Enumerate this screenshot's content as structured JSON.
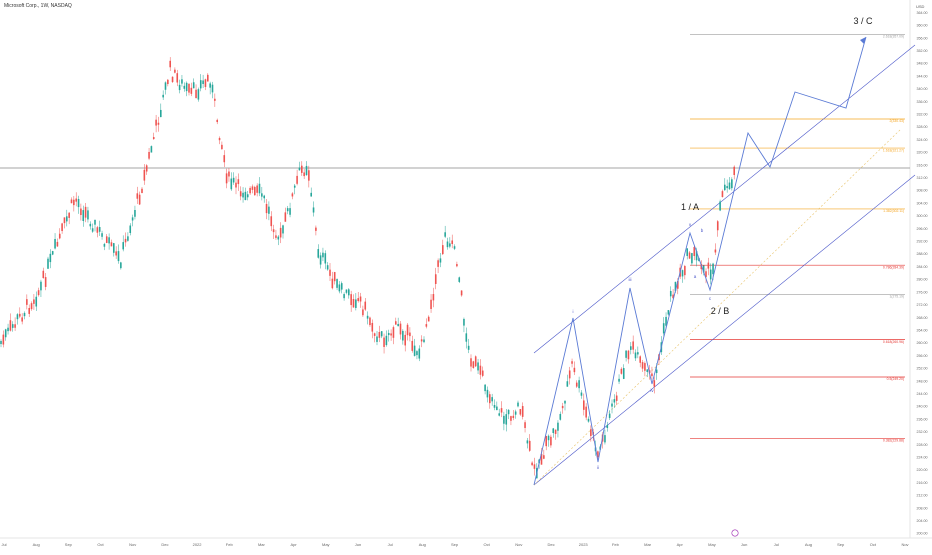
{
  "header": {
    "symbol_title": "Microsoft Corp., 1W, NASDAQ",
    "currency": "USD"
  },
  "chart_data": {
    "type": "candlestick",
    "title": "",
    "y_axis": {
      "ticks": [
        200,
        204,
        208,
        212,
        216,
        220,
        224,
        228,
        232,
        236,
        240,
        244,
        248,
        252,
        256,
        260,
        264,
        268,
        272,
        276,
        280,
        284,
        288,
        292,
        296,
        300,
        304,
        308,
        312,
        316,
        320,
        324,
        328,
        332,
        336,
        340,
        344,
        348,
        352,
        356,
        360,
        364
      ],
      "ylim": [
        198.5,
        366
      ]
    },
    "x_axis": {
      "labels": [
        "Jul",
        "Aug",
        "Sep",
        "Oct",
        "Nov",
        "Dec",
        "2022",
        "Feb",
        "Mar",
        "Apr",
        "May",
        "Jun",
        "Jul",
        "Aug",
        "Sep",
        "Oct",
        "Nov",
        "Dec",
        "2023",
        "Feb",
        "Mar",
        "Apr",
        "May",
        "Jun",
        "Jul",
        "Aug",
        "Sep",
        "Oct",
        "Nov"
      ]
    },
    "fib_levels": [
      {
        "label": "0.786(284.39)",
        "value": 284.39,
        "color": "#e53935"
      },
      {
        "label": "1(275.19)",
        "value": 275.19,
        "color": "#9e9e9e"
      },
      {
        "label": "1.382(302.11)",
        "value": 302.11,
        "color": "#f5a623"
      },
      {
        "label": "1.618(321.27)",
        "value": 321.27,
        "color": "#f5a623"
      },
      {
        "label": "2(330.43)",
        "value": 330.43,
        "color": "#f5a623"
      },
      {
        "label": "2.618(357.09)",
        "value": 357.09,
        "color": "#9e9e9e"
      },
      {
        "label": "0.618(260.96)",
        "value": 260.96,
        "color": "#e53935"
      },
      {
        "label": "0.5(249.20)",
        "value": 249.2,
        "color": "#e53935"
      },
      {
        "label": "0.382(229.88)",
        "value": 229.88,
        "color": "#e53935"
      }
    ],
    "horizontal_line": 315,
    "wave_labels": [
      {
        "text": "1 / A",
        "value": 305
      },
      {
        "text": "2 / B",
        "value": 271
      },
      {
        "text": "3 / C",
        "value": 362
      },
      {
        "text": "i",
        "value": 270
      },
      {
        "text": "ii",
        "value": 232
      },
      {
        "text": "iii",
        "value": 278
      },
      {
        "text": "iv",
        "value": 250
      },
      {
        "text": "v",
        "value": 298
      },
      {
        "text": "a",
        "value": 280
      },
      {
        "text": "b",
        "value": 291
      },
      {
        "text": "c",
        "value": 275
      }
    ]
  }
}
